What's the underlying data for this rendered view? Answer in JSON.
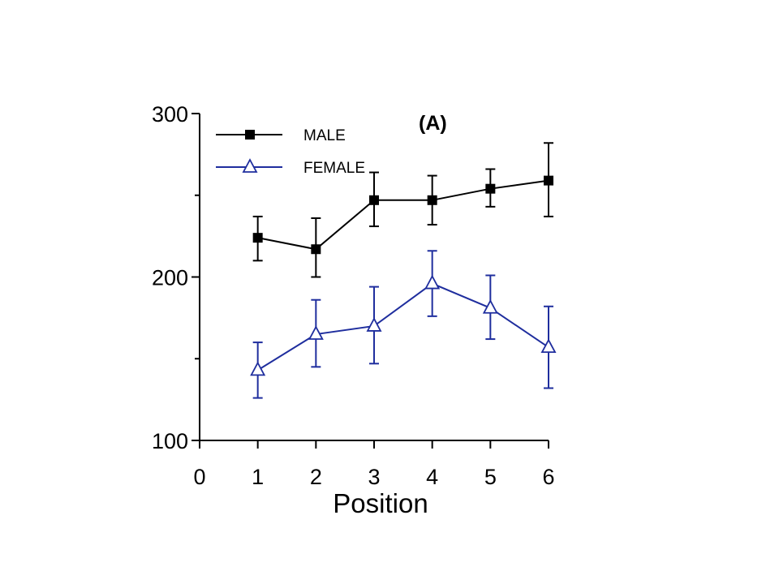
{
  "chart_data": {
    "type": "line",
    "panel_label": "(A)",
    "xlabel": "Position",
    "ylabel": "",
    "xlim": [
      0,
      6
    ],
    "ylim": [
      100,
      300
    ],
    "x_ticks": [
      0,
      1,
      2,
      3,
      4,
      5,
      6
    ],
    "y_ticks": [
      100,
      200,
      300
    ],
    "y_minor_ticks": [
      150,
      250
    ],
    "legend_position": "top-left",
    "grid": false,
    "series": [
      {
        "name": "MALE",
        "marker": "square",
        "color": "#000000",
        "x": [
          1,
          2,
          3,
          4,
          5,
          6
        ],
        "y": [
          224,
          217,
          247,
          247,
          254,
          259
        ],
        "err_upper": [
          237,
          236,
          264,
          262,
          266,
          282
        ],
        "err_lower": [
          210,
          200,
          231,
          232,
          243,
          237
        ]
      },
      {
        "name": "FEMALE",
        "marker": "open-triangle",
        "color": "#1f2e9e",
        "x": [
          1,
          2,
          3,
          4,
          5,
          6
        ],
        "y": [
          143,
          165,
          170,
          196,
          181,
          157
        ],
        "err_upper": [
          160,
          186,
          194,
          216,
          201,
          182
        ],
        "err_lower": [
          126,
          145,
          147,
          176,
          162,
          132
        ]
      }
    ]
  }
}
